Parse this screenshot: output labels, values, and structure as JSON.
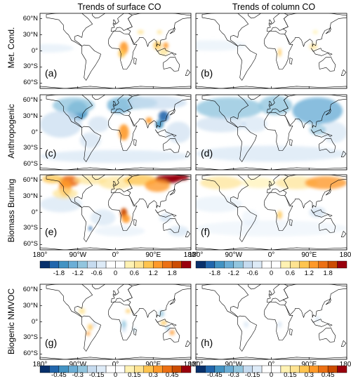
{
  "columns": [
    "Trends of surface CO",
    "Trends of column CO"
  ],
  "rows": [
    "Met. Cond.",
    "Anthropogenic",
    "Biomass Burning",
    "Biogenic NMVOC"
  ],
  "panel_labels": [
    "(a)",
    "(b)",
    "(c)",
    "(d)",
    "(e)",
    "(f)",
    "(g)",
    "(h)"
  ],
  "lat_ticks": [
    "60°N",
    "30°N",
    "0°",
    "30°S",
    "60°S"
  ],
  "lon_ticks": [
    "180°",
    "90°W",
    "0°",
    "90°E",
    "180°"
  ],
  "colorbar_top": {
    "ticks": [
      "-1.8",
      "-1.2",
      "-0.6",
      "0",
      "0.6",
      "1.2",
      "1.8"
    ]
  },
  "colorbar_bottom": {
    "ticks": [
      "-0.45",
      "-0.3",
      "-0.15",
      "0",
      "0.15",
      "0.3",
      "0.45"
    ]
  },
  "colors": {
    "bins": [
      "#08306b",
      "#2166ac",
      "#4393c3",
      "#6baed6",
      "#92c5de",
      "#c6dbef",
      "#deebf7",
      "#ffffff",
      "#ffffff",
      "#fff2b3",
      "#fee391",
      "#fec44f",
      "#fe9929",
      "#ec7014",
      "#cc4c02",
      "#99000d"
    ]
  }
}
